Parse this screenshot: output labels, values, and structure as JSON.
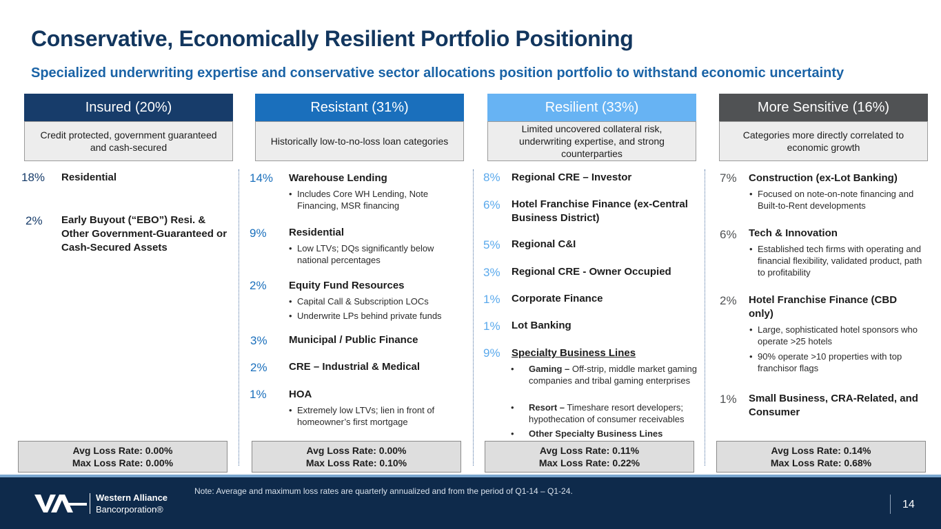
{
  "title": "Conservative, Economically Resilient Portfolio Positioning",
  "subtitle": "Specialized underwriting expertise and conservative sector allocations position portfolio to withstand economic uncertainty",
  "colors": {
    "title": "#12365e",
    "insured": "#173c6a",
    "resistant": "#1a6fbc",
    "resilient": "#67b3f3",
    "sensitive": "#505254"
  },
  "columns": [
    {
      "header": "Insured (20%)",
      "description": "Credit protected, government guaranteed and cash-secured",
      "items": [
        {
          "pct": "18%",
          "label": "Residential",
          "bullets": []
        },
        {
          "pct": "2%",
          "label": "Early Buyout (“EBO”) Resi. & Other Government-Guaranteed or Cash-Secured Assets",
          "bullets": []
        }
      ],
      "avg_loss": "Avg Loss Rate: 0.00%",
      "max_loss": "Max Loss Rate: 0.00%"
    },
    {
      "header": "Resistant (31%)",
      "description": "Historically low-to-no-loss loan categories",
      "items": [
        {
          "pct": "14%",
          "label": "Warehouse Lending",
          "bullets": [
            "Includes Core WH Lending, Note Financing, MSR financing"
          ]
        },
        {
          "pct": "9%",
          "label": "Residential",
          "bullets": [
            "Low LTVs; DQs significantly below national percentages"
          ]
        },
        {
          "pct": "2%",
          "label": "Equity Fund Resources",
          "bullets": [
            "Capital Call & Subscription LOCs",
            "Underwrite LPs behind private funds"
          ]
        },
        {
          "pct": "3%",
          "label": "Municipal / Public Finance",
          "bullets": []
        },
        {
          "pct": "2%",
          "label": "CRE – Industrial & Medical",
          "bullets": []
        },
        {
          "pct": "1%",
          "label": "HOA",
          "bullets": [
            "Extremely low LTVs; lien in front of homeowner’s first mortgage"
          ]
        }
      ],
      "avg_loss": "Avg Loss Rate: 0.00%",
      "max_loss": "Max Loss Rate: 0.10%"
    },
    {
      "header": "Resilient (33%)",
      "description": "Limited uncovered collateral risk, underwriting expertise, and strong counterparties",
      "items": [
        {
          "pct": "8%",
          "label": "Regional CRE – Investor",
          "bullets": []
        },
        {
          "pct": "6%",
          "label": "Hotel Franchise Finance (ex-Central Business District)",
          "bullets": []
        },
        {
          "pct": "5%",
          "label": "Regional C&I",
          "bullets": []
        },
        {
          "pct": "3%",
          "label": "Regional CRE - Owner Occupied",
          "bullets": []
        },
        {
          "pct": "1%",
          "label": "Corporate Finance",
          "bullets": []
        },
        {
          "pct": "1%",
          "label": "Lot Banking",
          "bullets": []
        },
        {
          "pct": "9%",
          "label": "Specialty Business Lines",
          "bullets": [
            {
              "bold": "Gaming –",
              "text": " Off-strip, middle market gaming companies and tribal gaming enterprises"
            },
            {
              "bold": "Resort –",
              "text": " Timeshare resort developers; hypothecation of consumer receivables"
            },
            {
              "bold": "Other Specialty Business Lines",
              "text": ""
            }
          ]
        }
      ],
      "avg_loss": "Avg Loss Rate: 0.11%",
      "max_loss": "Max Loss Rate: 0.22%"
    },
    {
      "header": "More Sensitive (16%)",
      "description": "Categories more directly correlated to economic growth",
      "items": [
        {
          "pct": "7%",
          "label": "Construction (ex-Lot Banking)",
          "bullets": [
            "Focused on note-on-note financing and Built-to-Rent developments"
          ]
        },
        {
          "pct": "6%",
          "label": "Tech & Innovation",
          "bullets": [
            "Established tech firms with operating and financial flexibility, validated product, path to profitability"
          ]
        },
        {
          "pct": "2%",
          "label": "Hotel Franchise Finance (CBD only)",
          "bullets": [
            "Large, sophisticated hotel sponsors who operate >25 hotels",
            "90% operate >10 properties with top franchisor flags"
          ]
        },
        {
          "pct": "1%",
          "label": "Small Business, CRA-Related, and Consumer",
          "bullets": []
        }
      ],
      "avg_loss": "Avg Loss Rate: 0.14%",
      "max_loss": "Max Loss Rate: 0.68%"
    }
  ],
  "footer": {
    "note": "Note: Average and maximum loss rates are quarterly annualized and from the period of Q1-14 – Q1-24.",
    "company_line1": "Western Alliance",
    "company_line2": "Bancorporation®",
    "page_number": "14"
  }
}
